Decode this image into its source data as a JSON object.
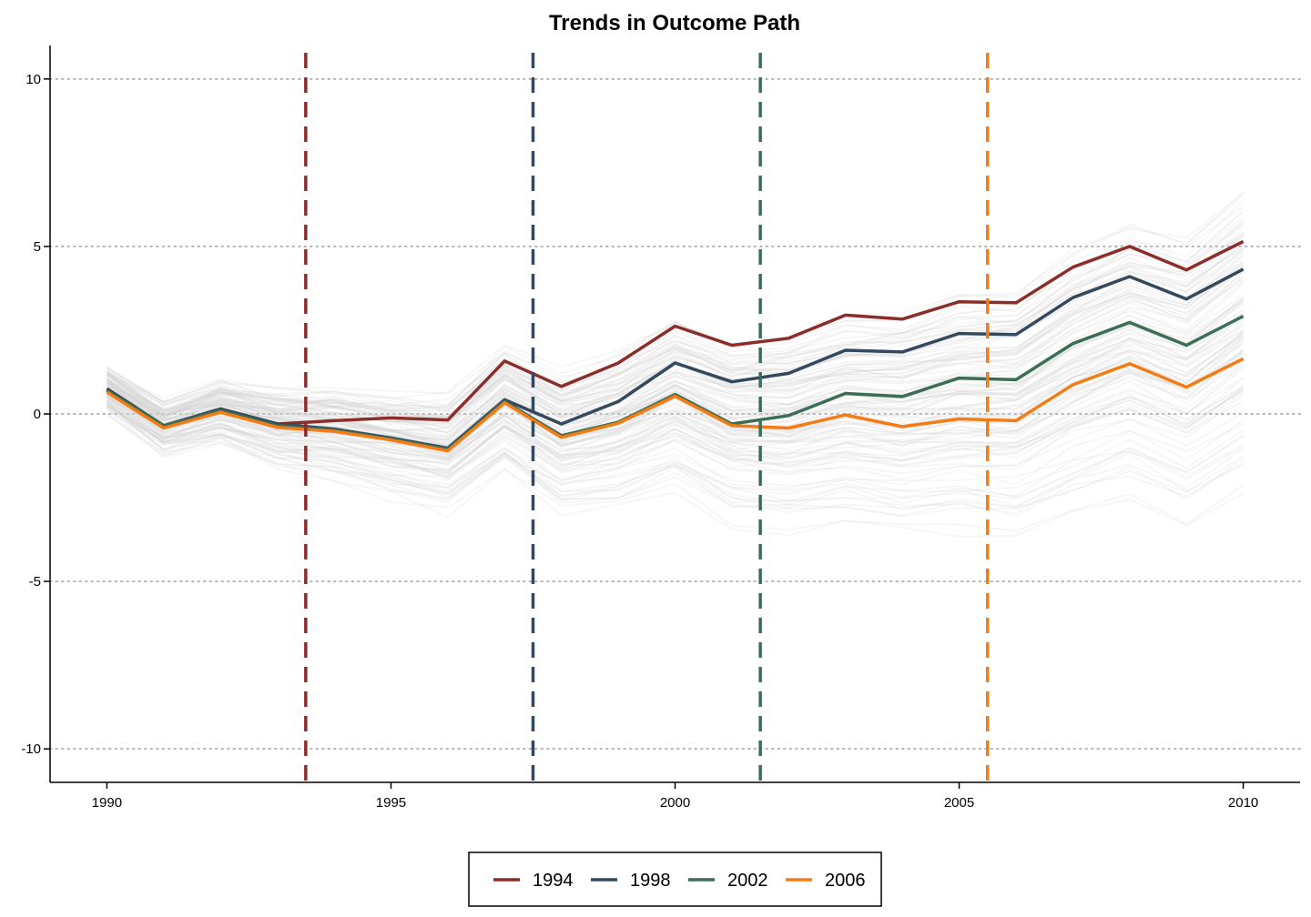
{
  "chart_data": {
    "type": "line",
    "title": "Trends in Outcome Path",
    "xlabel": "",
    "ylabel": "",
    "xlim": [
      1989,
      2011
    ],
    "ylim": [
      -11,
      11
    ],
    "x_ticks": [
      "1990",
      "1995",
      "2000",
      "2005",
      "2010"
    ],
    "y_ticks": [
      "10",
      "5",
      "0",
      "-5",
      "-10"
    ],
    "grid": "horizontal dotted",
    "legend_position": "bottom",
    "x": [
      1990,
      1991,
      1992,
      1993,
      1994,
      1995,
      1996,
      1997,
      1998,
      1999,
      2000,
      2001,
      2002,
      2003,
      2004,
      2005,
      2006,
      2007,
      2008,
      2009,
      2010
    ],
    "background_series_count": 120,
    "background_color": "#d3d3d3",
    "background_mean": [
      0.7,
      -0.4,
      0.1,
      -0.4,
      -0.5,
      -0.8,
      -1.1,
      0.3,
      -0.7,
      -0.3,
      0.5,
      -0.3,
      -0.3,
      0.1,
      0.0,
      0.3,
      0.3,
      1.3,
      2.0,
      1.4,
      2.6
    ],
    "series": [
      {
        "name": "1994",
        "color": "#8b2e2a",
        "treatment_x": 1993.5,
        "values": [
          0.75,
          -0.35,
          0.15,
          -0.3,
          -0.2,
          -0.12,
          -0.18,
          1.58,
          0.82,
          1.52,
          2.62,
          2.05,
          2.26,
          2.95,
          2.83,
          3.35,
          3.32,
          4.38,
          5.0,
          4.3,
          5.15
        ]
      },
      {
        "name": "1998",
        "color": "#34495e",
        "treatment_x": 1997.5,
        "values": [
          0.75,
          -0.35,
          0.15,
          -0.3,
          -0.45,
          -0.72,
          -1.02,
          0.42,
          -0.3,
          0.37,
          1.52,
          0.96,
          1.21,
          1.9,
          1.85,
          2.4,
          2.37,
          3.47,
          4.1,
          3.43,
          4.32
        ]
      },
      {
        "name": "2002",
        "color": "#3b6e55",
        "treatment_x": 2001.5,
        "values": [
          0.7,
          -0.35,
          0.1,
          -0.35,
          -0.48,
          -0.75,
          -1.05,
          0.37,
          -0.65,
          -0.25,
          0.58,
          -0.3,
          -0.05,
          0.61,
          0.52,
          1.07,
          1.02,
          2.1,
          2.73,
          2.05,
          2.92
        ]
      },
      {
        "name": "2006",
        "color": "#f57c14",
        "treatment_x": 2005.5,
        "values": [
          0.65,
          -0.42,
          0.05,
          -0.4,
          -0.52,
          -0.78,
          -1.1,
          0.33,
          -0.7,
          -0.28,
          0.53,
          -0.35,
          -0.42,
          -0.03,
          -0.38,
          -0.15,
          -0.2,
          0.87,
          1.5,
          0.8,
          1.65
        ]
      }
    ]
  }
}
